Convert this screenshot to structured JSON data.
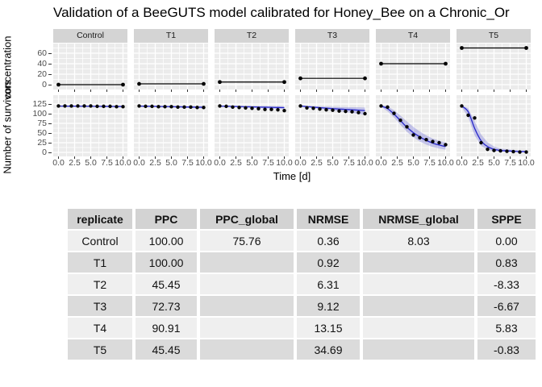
{
  "title": "Validation of a BeeGUTS model calibrated for Honey_Bee on a  Chronic_Or",
  "colors": {
    "panel_bg": "#EBEBEB",
    "strip_bg": "#D4D4D4",
    "grid": "#FFFFFF",
    "points": "#000000",
    "conc_line": "#000000",
    "model_line": "#2626C9",
    "ribbon_fill": "#5555D5",
    "table_header_bg": "#D3D3D3",
    "table_row_light": "#EFEFEF",
    "table_row_dark": "#DBDBDB"
  },
  "chart_data": {
    "type": "line",
    "xlabel": "Time [d]",
    "x_ticks": [
      "0.0",
      "2.5",
      "5.0",
      "7.5",
      "10.0"
    ],
    "x_tick_values": [
      0,
      2.5,
      5,
      7.5,
      10
    ],
    "days": [
      0,
      1,
      2,
      3,
      4,
      5,
      6,
      7,
      8,
      9,
      10
    ],
    "top_row": {
      "ylabel": "concentration",
      "yticks": [
        0,
        20,
        40,
        60
      ],
      "yminor": [
        10,
        30,
        50,
        70
      ],
      "ylim": [
        0,
        78
      ]
    },
    "bottom_row": {
      "ylabel": "Number of survivors",
      "yticks": [
        0,
        25,
        50,
        75,
        100,
        125
      ],
      "yminor": [
        12.5,
        37.5,
        62.5,
        87.5,
        112.5,
        137.5
      ],
      "ylim": [
        0,
        147
      ]
    },
    "facets": [
      {
        "label": "Control",
        "concentration": 0,
        "observed": [
          120,
          120,
          120,
          120,
          120,
          120,
          119,
          119,
          119,
          118,
          118
        ],
        "model": [
          119.6,
          119.5,
          119.4,
          119.3,
          119.2,
          119.1,
          119.0,
          118.9,
          118.8,
          118.7,
          118.6
        ],
        "ribbon_low": [
          118.6,
          118.4,
          118.2,
          118.0,
          117.8,
          117.6,
          117.4,
          117.2,
          117.0,
          116.8,
          116.6
        ],
        "ribbon_high": [
          120.4,
          120.3,
          120.2,
          120.1,
          120.0,
          119.9,
          119.9,
          119.8,
          119.8,
          119.7,
          119.7
        ]
      },
      {
        "label": "T1",
        "concentration": 1.5,
        "observed": [
          120,
          119,
          119,
          118,
          118,
          118,
          117,
          117,
          117,
          116,
          116
        ],
        "model": [
          119.6,
          119.3,
          119.0,
          118.7,
          118.4,
          118.1,
          117.8,
          117.5,
          117.2,
          116.9,
          116.6
        ],
        "ribbon_low": [
          118.6,
          118.1,
          117.6,
          117.1,
          116.6,
          116.1,
          115.6,
          115.1,
          114.6,
          114.1,
          113.6
        ],
        "ribbon_high": [
          120.4,
          120.2,
          120.0,
          119.8,
          119.6,
          119.5,
          119.4,
          119.3,
          119.2,
          119.1,
          119.0
        ]
      },
      {
        "label": "T2",
        "concentration": 5,
        "observed": [
          120,
          119,
          117,
          116,
          115,
          114,
          113,
          111,
          111,
          110,
          108
        ],
        "model": [
          119.6,
          119.2,
          118.8,
          118.4,
          118.0,
          117.6,
          117.2,
          116.8,
          116.4,
          116.0,
          115.6
        ],
        "ribbon_low": [
          118.6,
          117.9,
          117.2,
          116.5,
          115.8,
          115.1,
          114.4,
          113.7,
          113.0,
          112.3,
          111.6
        ],
        "ribbon_high": [
          120.4,
          120.2,
          120.0,
          119.8,
          119.6,
          119.4,
          119.3,
          119.2,
          119.1,
          119.0,
          118.9
        ]
      },
      {
        "label": "T3",
        "concentration": 12,
        "observed": [
          120,
          115,
          114,
          112,
          110,
          109,
          107,
          106,
          105,
          103,
          100
        ],
        "model": [
          119.8,
          118.3,
          116.9,
          115.6,
          114.3,
          113.1,
          112.0,
          111.0,
          110.0,
          109.0,
          108.0
        ],
        "ribbon_low": [
          118.5,
          116.3,
          114.2,
          112.2,
          110.2,
          108.2,
          106.2,
          104.0,
          101.8,
          99.4,
          96.8
        ],
        "ribbon_high": [
          120.6,
          120.0,
          119.4,
          118.8,
          118.2,
          117.7,
          117.3,
          116.9,
          116.6,
          116.3,
          116.0
        ]
      },
      {
        "label": "T4",
        "concentration": 40,
        "observed": [
          120,
          117,
          101,
          83,
          66,
          45,
          38,
          33,
          28,
          25,
          20
        ],
        "model": [
          119.8,
          113,
          99,
          82,
          65,
          51,
          40,
          31,
          24,
          19,
          15
        ],
        "ribbon_low": [
          118,
          106,
          90,
          71,
          53,
          39,
          28,
          20,
          14,
          10,
          7
        ],
        "ribbon_high": [
          121,
          119,
          109,
          95,
          80,
          66,
          54,
          44,
          36,
          30,
          25
        ]
      },
      {
        "label": "T5",
        "concentration": 70,
        "observed": [
          120,
          96,
          89,
          25,
          8,
          5,
          4,
          3,
          2,
          1,
          1
        ],
        "model": [
          119.8,
          105,
          62,
          30,
          15,
          8,
          5,
          4,
          3,
          2,
          2
        ],
        "ribbon_low": [
          117,
          91,
          44,
          17,
          7,
          3,
          2,
          1,
          1,
          0.5,
          0.5
        ],
        "ribbon_high": [
          121,
          114,
          80,
          46,
          26,
          15,
          10,
          8,
          6,
          5,
          5
        ]
      }
    ]
  },
  "table": {
    "headers": [
      "replicate",
      "PPC",
      "PPC_global",
      "NRMSE",
      "NRMSE_global",
      "SPPE"
    ],
    "rows": [
      [
        "Control",
        "100.00",
        "75.76",
        "0.36",
        "8.03",
        "0.00"
      ],
      [
        "T1",
        "100.00",
        "",
        "0.92",
        "",
        "0.83"
      ],
      [
        "T2",
        "45.45",
        "",
        "6.31",
        "",
        "-8.33"
      ],
      [
        "T3",
        "72.73",
        "",
        "9.12",
        "",
        "-6.67"
      ],
      [
        "T4",
        "90.91",
        "",
        "13.15",
        "",
        "5.83"
      ],
      [
        "T5",
        "45.45",
        "",
        "34.69",
        "",
        "-0.83"
      ]
    ]
  }
}
